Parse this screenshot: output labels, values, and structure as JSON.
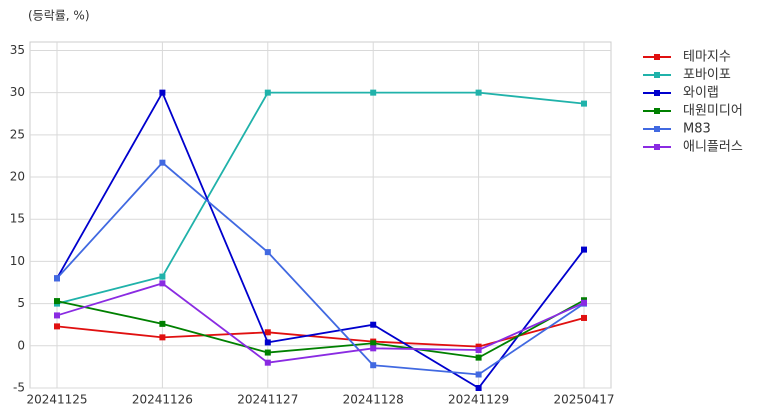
{
  "chart_data": {
    "type": "line",
    "y_label": "(등락률, %)",
    "categories": [
      "20241125",
      "20241126",
      "20241127",
      "20241128",
      "20241129",
      "20250417"
    ],
    "series": [
      {
        "name": "테마지수",
        "color": "#e01010",
        "values": [
          2.3,
          1.0,
          1.6,
          0.5,
          -0.1,
          3.3
        ]
      },
      {
        "name": "포바이포",
        "color": "#20b2aa",
        "values": [
          5.0,
          8.2,
          30.0,
          30.0,
          30.0,
          28.7
        ]
      },
      {
        "name": "와이랩",
        "color": "#0000cd",
        "values": [
          8.0,
          30.0,
          0.4,
          2.5,
          -5.0,
          11.4
        ]
      },
      {
        "name": "대원미디어",
        "color": "#008000",
        "values": [
          5.3,
          2.6,
          -0.8,
          0.3,
          -1.4,
          5.4
        ]
      },
      {
        "name": "M83",
        "color": "#4169e1",
        "values": [
          8.0,
          21.7,
          11.1,
          -2.3,
          -3.4,
          5.0
        ]
      },
      {
        "name": "애니플러스",
        "color": "#8a2be2",
        "values": [
          3.6,
          7.4,
          -2.0,
          -0.3,
          -0.5,
          5.1
        ]
      }
    ],
    "ylim": [
      -5,
      36
    ],
    "yticks": [
      -5,
      0,
      5,
      10,
      15,
      20,
      25,
      30,
      35
    ],
    "grid": true,
    "legend": "outside-right"
  }
}
